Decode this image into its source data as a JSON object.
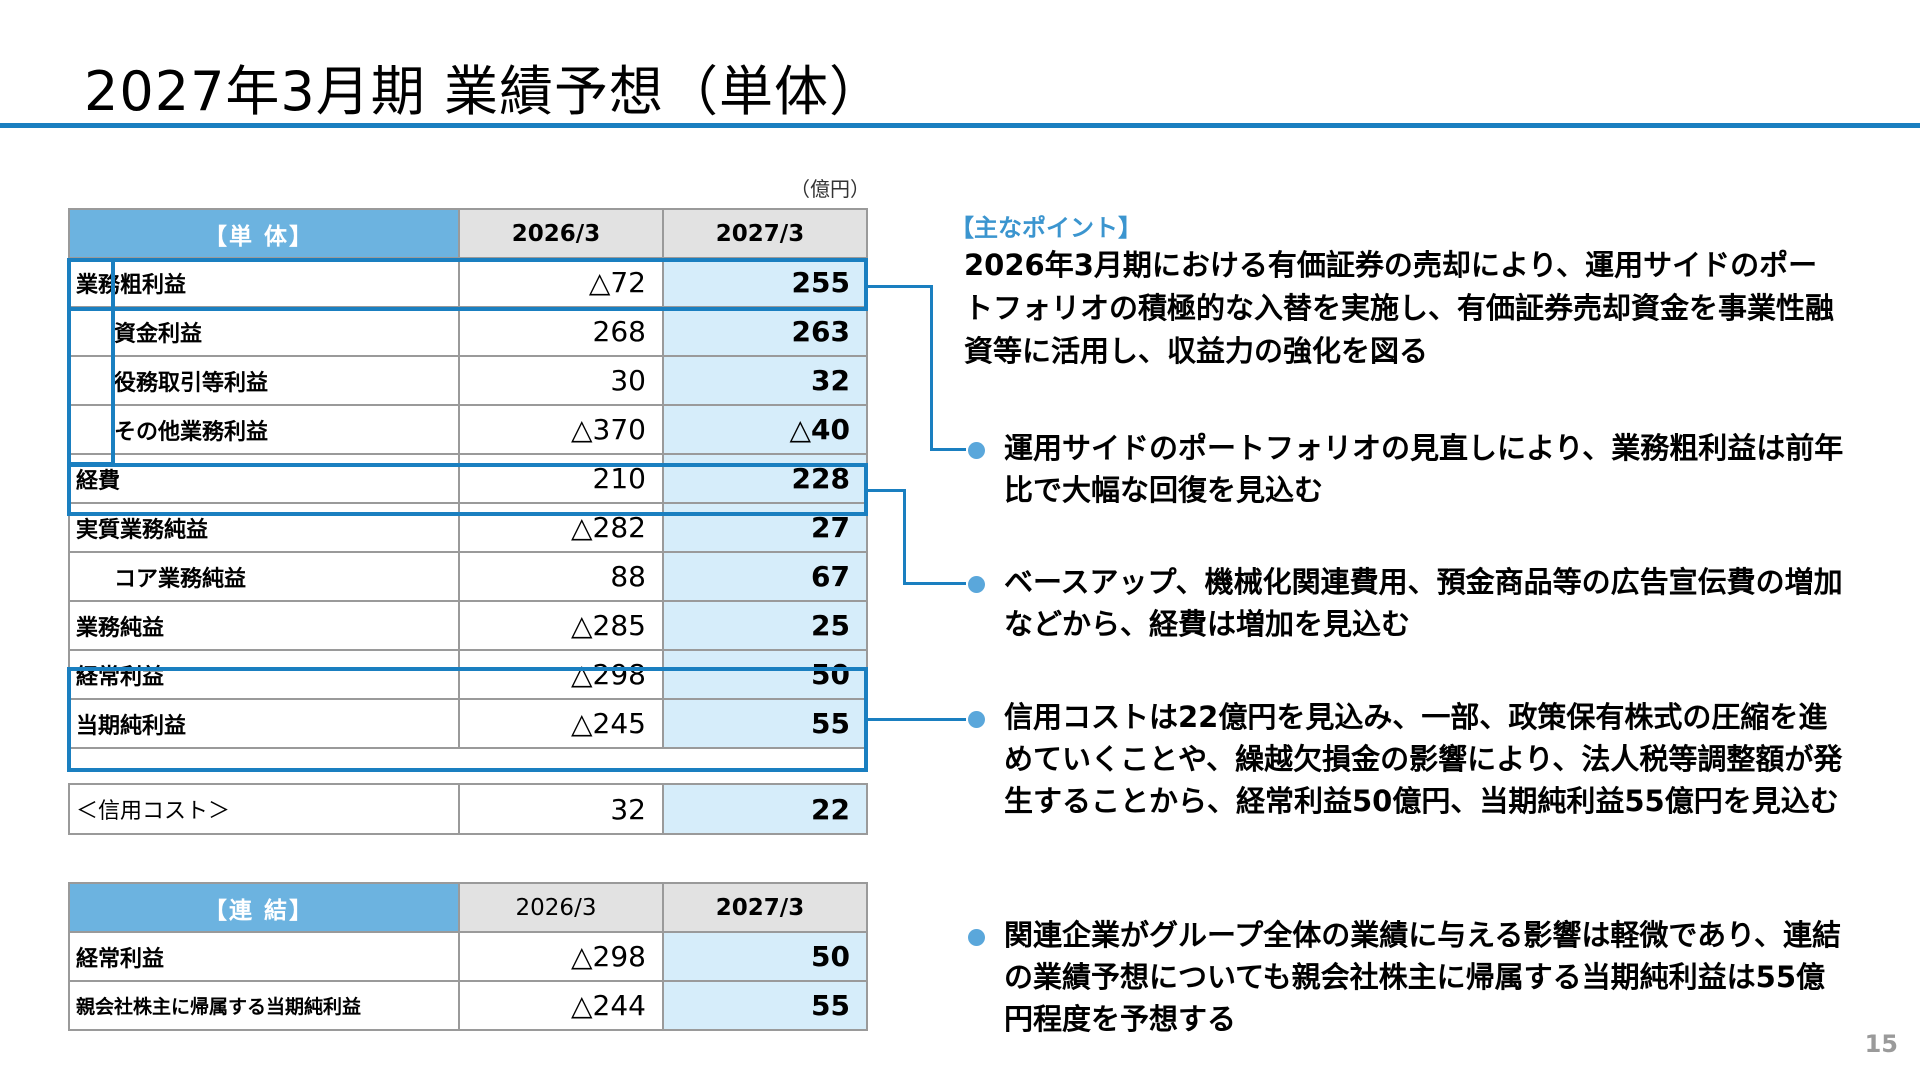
{
  "title": "2027年3月期 業績予想（単体）",
  "unit_label": "（億円）",
  "single_table": {
    "header": {
      "label": "【単 体】",
      "col1": "2026/3",
      "col2": "2027/3"
    },
    "rows": [
      {
        "label": "業務粗利益",
        "v1": "△72",
        "v2": "255"
      },
      {
        "label": "資金利益",
        "v1": "268",
        "v2": "263"
      },
      {
        "label": "役務取引等利益",
        "v1": "30",
        "v2": "32"
      },
      {
        "label": "その他業務利益",
        "v1": "△370",
        "v2": "△40"
      },
      {
        "label": "経費",
        "v1": "210",
        "v2": "228"
      },
      {
        "label": "実質業務純益",
        "v1": "△282",
        "v2": "27"
      },
      {
        "label": "コア業務純益",
        "v1": "88",
        "v2": "67"
      },
      {
        "label": "業務純益",
        "v1": "△285",
        "v2": "25"
      },
      {
        "label": "経常利益",
        "v1": "△298",
        "v2": "50"
      },
      {
        "label": "当期純利益",
        "v1": "△245",
        "v2": "55"
      }
    ],
    "credit_row": {
      "label": "＜信用コスト＞",
      "v1": "32",
      "v2": "22"
    }
  },
  "consolidated_table": {
    "header": {
      "label": "【連 結】",
      "col1": "2026/3",
      "col2": "2027/3"
    },
    "rows": [
      {
        "label": "経常利益",
        "v1": "△298",
        "v2": "50"
      },
      {
        "label": "親会社株主に帰属する当期純利益",
        "v1": "△244",
        "v2": "55"
      }
    ]
  },
  "points": {
    "heading": "【主なポイント】",
    "main": "2026年3月期における有価証券の売却により、運用サイドのポートフォリオの積極的な入替を実施し、有価証券売却資金を事業性融資等に活用し、収益力の強化を図る",
    "bullets": [
      "運用サイドのポートフォリオの見直しにより、業務粗利益は前年比で大幅な回復を見込む",
      "ベースアップ、機械化関連費用、預金商品等の広告宣伝費の増加などから、経費は増加を見込む",
      "信用コストは22億円を見込み、一部、政策保有株式の圧縮を進めていくことや、繰越欠損金の影響により、法人税等調整額が発生することから、経常利益50億円、当期純利益55億円を見込む",
      "関連企業がグループ全体の業績に与える影響は軽微であり、連結の業績予想についても親会社株主に帰属する当期純利益は55億円程度を予想する"
    ]
  },
  "page_number": "15",
  "colors": {
    "accent": "#1a7fc0",
    "header_fill": "#6cb3e0",
    "forecast_fill": "#d6edfa",
    "bullet": "#5aa7db"
  }
}
